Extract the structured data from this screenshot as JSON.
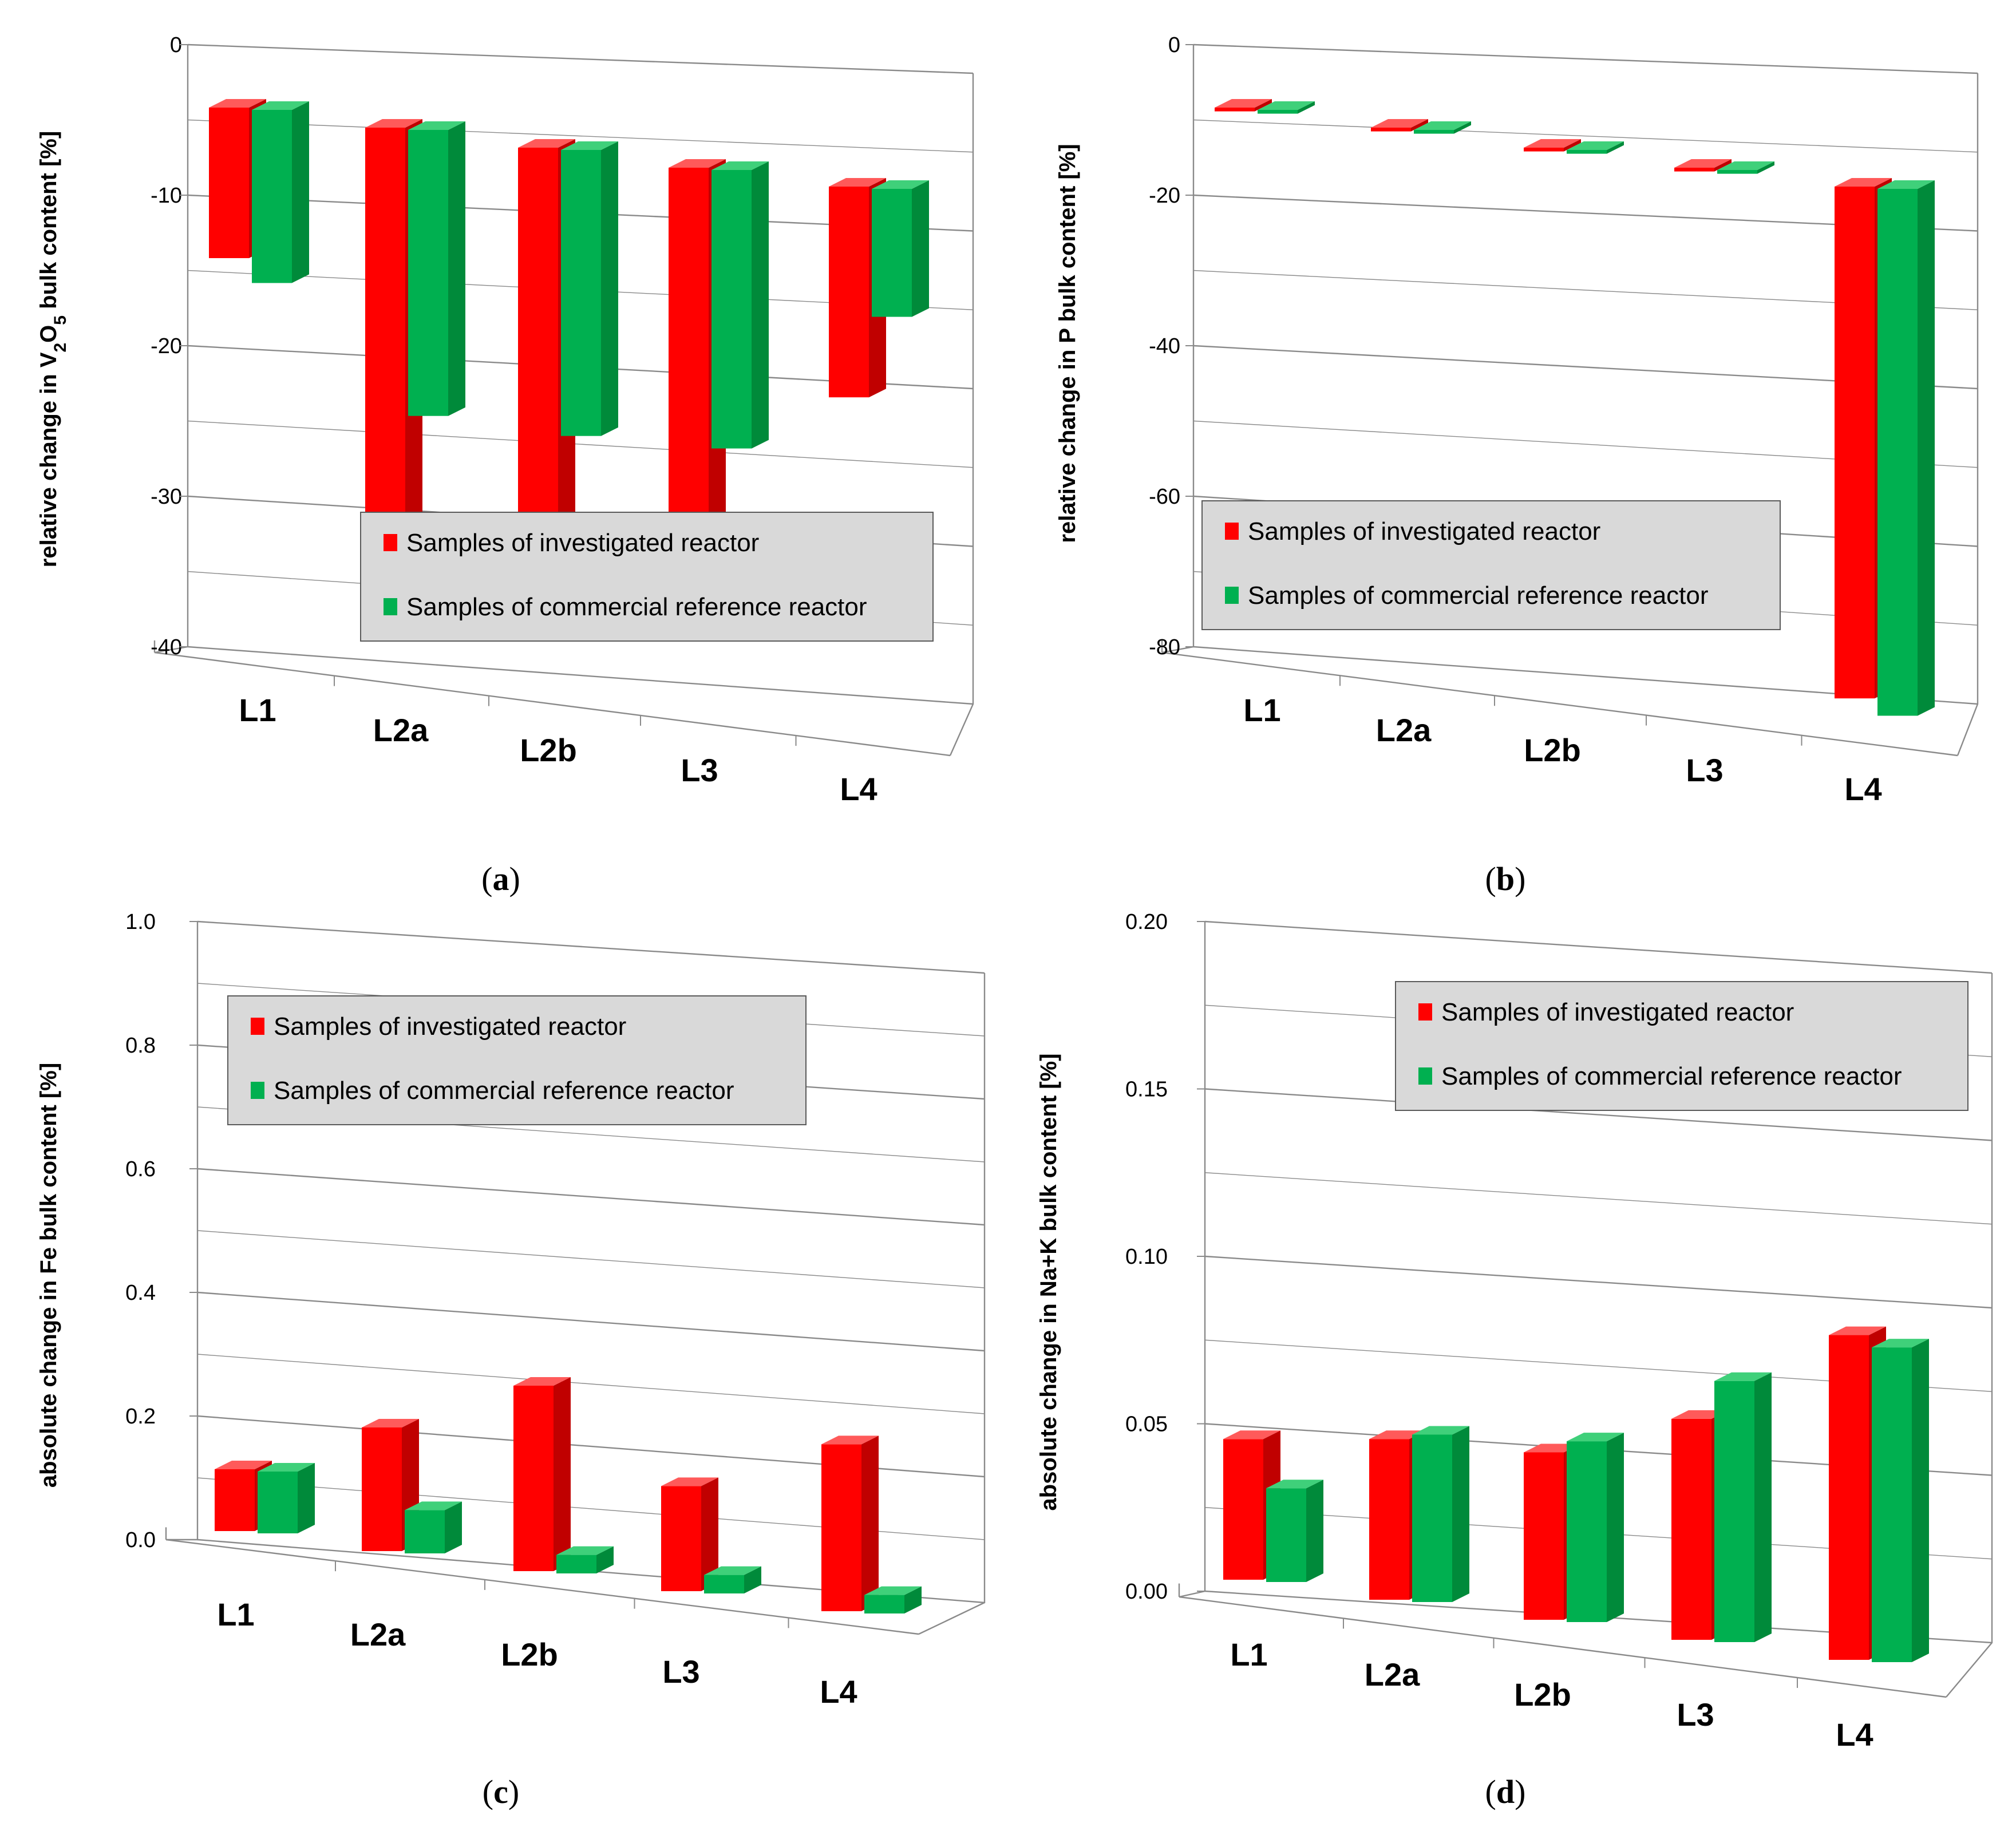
{
  "legend": {
    "investigated": "Samples of investigated reactor",
    "reference": "Samples of commercial reference reactor"
  },
  "colors": {
    "investigated_front": "#ff0000",
    "investigated_side": "#c00000",
    "investigated_top": "#ff5a5a",
    "reference_front": "#00b050",
    "reference_side": "#008a3a",
    "reference_top": "#3fd07a"
  },
  "chart_data": [
    {
      "id": "a",
      "type": "bar",
      "panel_label": "a",
      "ylabel": "relative change in V₂O₅ bulk content [%]",
      "ylabel_parts": {
        "pre": "relative change in V",
        "sub1": "2",
        "mid": "O",
        "sub2": "5",
        "post": " bulk content [%]"
      },
      "categories": [
        "L1",
        "L2a",
        "L2b",
        "L3",
        "L4"
      ],
      "ylim": [
        -40,
        0
      ],
      "yticks": [
        0,
        -10,
        -20,
        -30,
        -40
      ],
      "ytick_labels": [
        "0",
        "-10",
        "-20",
        "-30",
        "-40"
      ],
      "legend_position": "lower-right",
      "grid": true,
      "series": [
        {
          "name": "Samples of investigated reactor",
          "values": [
            -10,
            -26.5,
            -25,
            -26.5,
            -14
          ]
        },
        {
          "name": "Samples of commercial reference reactor",
          "values": [
            -11.5,
            -19,
            -19,
            -18.5,
            -8.5
          ]
        }
      ]
    },
    {
      "id": "b",
      "type": "bar",
      "panel_label": "b",
      "ylabel": "relative change in P bulk content [%]",
      "categories": [
        "L1",
        "L2a",
        "L2b",
        "L3",
        "L4"
      ],
      "ylim": [
        -80,
        0
      ],
      "yticks": [
        0,
        -20,
        -40,
        -60,
        -80
      ],
      "ytick_labels": [
        "0",
        "-20",
        "-40",
        "-60",
        "-80"
      ],
      "legend_position": "lower-left",
      "grid": true,
      "series": [
        {
          "name": "Samples of investigated reactor",
          "values": [
            -0.5,
            -0.5,
            -0.5,
            -0.5,
            -68
          ]
        },
        {
          "name": "Samples of commercial reference reactor",
          "values": [
            -0.5,
            -0.5,
            -0.5,
            -0.5,
            -70
          ]
        }
      ]
    },
    {
      "id": "c",
      "type": "bar",
      "panel_label": "c",
      "ylabel": "absolute change in Fe bulk content [%]",
      "categories": [
        "L1",
        "L2a",
        "L2b",
        "L3",
        "L4"
      ],
      "ylim": [
        0,
        1.0
      ],
      "yticks": [
        0,
        0.2,
        0.4,
        0.6,
        0.8,
        1.0
      ],
      "ytick_labels": [
        "0.0",
        "0.2",
        "0.4",
        "0.6",
        "0.8",
        "1.0"
      ],
      "legend_position": "top-left",
      "grid": true,
      "series": [
        {
          "name": "Samples of investigated reactor",
          "values": [
            0.1,
            0.2,
            0.3,
            0.17,
            0.27
          ]
        },
        {
          "name": "Samples of commercial reference reactor",
          "values": [
            0.1,
            0.07,
            0.03,
            0.03,
            0.03
          ]
        }
      ]
    },
    {
      "id": "d",
      "type": "bar",
      "panel_label": "d",
      "ylabel": "absolute change in Na+K bulk content [%]",
      "categories": [
        "L1",
        "L2a",
        "L2b",
        "L3",
        "L4"
      ],
      "ylim": [
        0,
        0.2
      ],
      "yticks": [
        0,
        0.05,
        0.1,
        0.15,
        0.2
      ],
      "ytick_labels": [
        "0.00",
        "0.05",
        "0.10",
        "0.15",
        "0.20"
      ],
      "legend_position": "top-right",
      "grid": true,
      "series": [
        {
          "name": "Samples of investigated reactor",
          "values": [
            0.042,
            0.048,
            0.05,
            0.066,
            0.097
          ]
        },
        {
          "name": "Samples of commercial reference reactor",
          "values": [
            0.028,
            0.05,
            0.054,
            0.078,
            0.094
          ]
        }
      ]
    }
  ]
}
